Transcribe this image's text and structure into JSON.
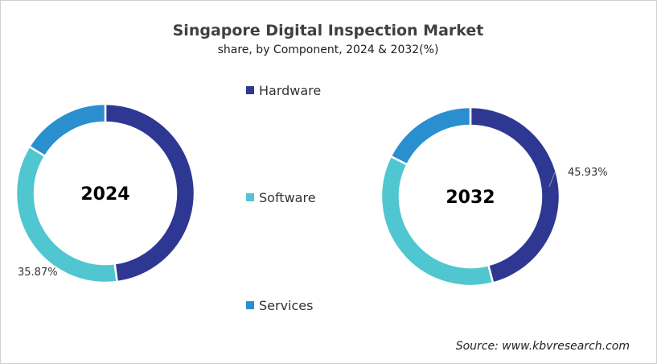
{
  "chart_data": {
    "type": "donut",
    "title": "Singapore Digital Inspection Market",
    "subtitle": "share, by Component, 2024 & 2032(%)",
    "legend": {
      "placement": "center",
      "entries": [
        "Hardware",
        "Software",
        "Services"
      ]
    },
    "colors": {
      "Hardware": "#2e3893",
      "Software": "#4fc6d0",
      "Services": "#2a8fcf"
    },
    "charts": [
      {
        "label": "2024",
        "values": {
          "Hardware": 47.9,
          "Software": 35.87,
          "Services": 16.23
        },
        "data_label": "35.87%",
        "labeled_series": "Software"
      },
      {
        "label": "2032",
        "values": {
          "Hardware": 45.93,
          "Software": 36.5,
          "Services": 17.57
        },
        "data_label": "45.93%",
        "labeled_series": "Hardware"
      }
    ],
    "source": "Source: www.kbvresearch.com"
  }
}
